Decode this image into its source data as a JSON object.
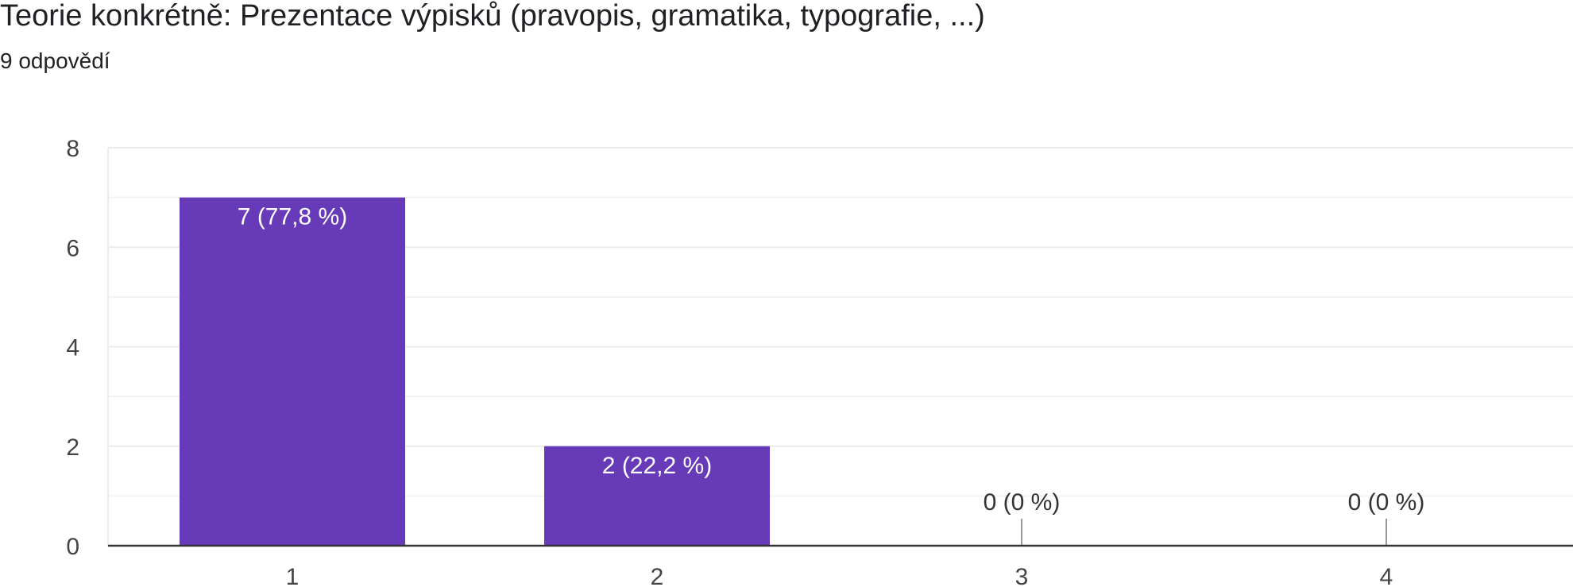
{
  "title": "Teorie konkrétně: Prezentace výpisků (pravopis, gramatika, typografie, ...)",
  "subtitle": "9 odpovědí",
  "colors": {
    "bar": "#673ab7",
    "grid": "#ececec",
    "axis": "#333333",
    "tick_text": "#444444",
    "label_inside": "#ffffff",
    "label_outside": "#333333"
  },
  "chart_data": {
    "type": "bar",
    "categories": [
      "1",
      "2",
      "3",
      "4"
    ],
    "values": [
      7,
      2,
      0,
      0
    ],
    "data_labels": [
      "7 (77,8 %)",
      "2 (22,2 %)",
      "0 (0 %)",
      "0 (0 %)"
    ],
    "ylim": [
      0,
      8
    ],
    "y_ticks": [
      "0",
      "2",
      "4",
      "6",
      "8"
    ],
    "grid": true,
    "legend": "none",
    "xlabel": "",
    "ylabel": ""
  }
}
